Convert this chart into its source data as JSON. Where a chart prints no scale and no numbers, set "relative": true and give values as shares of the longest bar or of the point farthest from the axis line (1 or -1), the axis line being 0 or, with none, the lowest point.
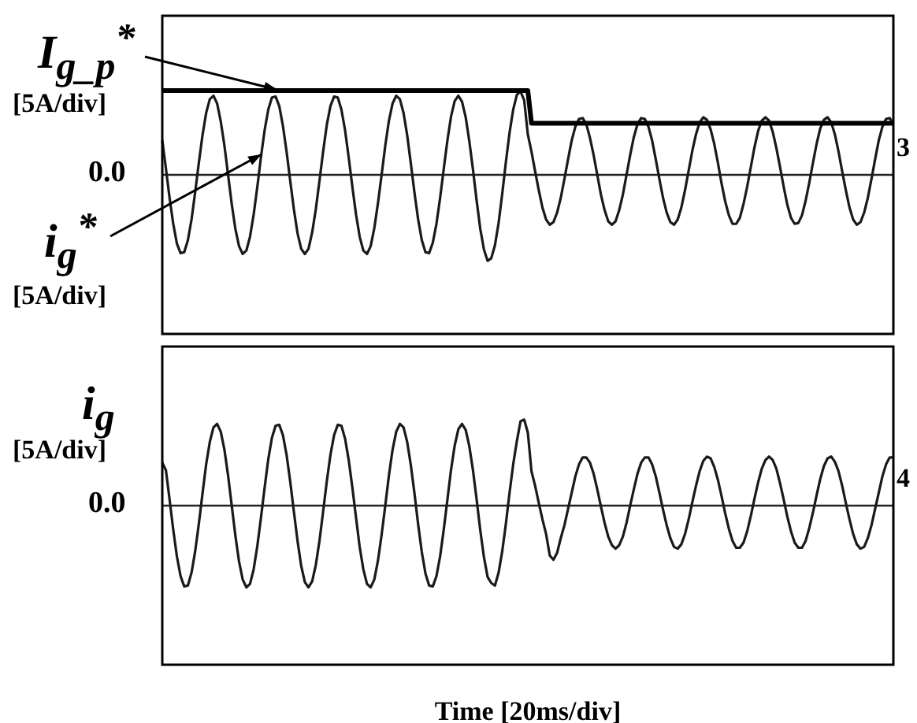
{
  "chart_data": [
    {
      "type": "line",
      "relative": true,
      "annotations": [
        "[5A/div]",
        "[5A/div]",
        "0.0",
        "3"
      ],
      "categories": [
        null,
        null,
        null,
        null,
        null,
        null,
        null,
        null,
        null,
        null,
        null,
        null,
        null,
        null,
        null,
        null,
        null,
        null,
        null,
        null,
        null,
        null,
        null,
        null,
        null,
        null,
        null,
        null,
        null,
        null,
        null,
        null,
        null,
        null,
        null,
        null,
        null,
        null,
        null,
        null,
        null,
        null,
        null,
        null,
        null,
        null,
        null,
        null,
        null,
        null,
        null,
        null,
        null,
        null,
        null,
        null,
        null,
        null,
        null,
        null,
        null,
        null,
        null,
        null,
        null,
        null,
        null,
        null,
        null,
        null,
        null,
        null,
        null,
        null,
        null,
        null,
        null,
        null,
        null,
        null,
        null,
        null,
        null,
        null,
        null,
        null,
        null,
        null,
        null,
        null,
        null,
        null,
        null,
        null,
        null,
        null,
        null,
        null,
        null,
        null,
        null,
        null,
        null,
        null,
        null,
        null,
        null,
        null,
        null,
        null,
        null,
        null,
        null,
        null,
        null,
        null,
        null,
        null,
        null,
        null,
        null,
        null,
        null,
        null,
        null,
        null,
        null,
        null,
        null,
        null,
        null,
        null,
        null,
        null,
        null,
        null,
        null,
        null,
        null,
        null,
        null,
        null,
        null,
        null,
        null,
        null,
        null,
        null,
        null,
        null,
        null,
        null,
        null,
        null,
        null,
        null,
        null,
        null,
        null,
        null,
        null,
        null,
        null,
        null,
        null,
        null,
        null,
        null,
        null,
        null,
        null,
        null,
        null,
        null,
        null,
        null,
        null,
        null,
        null,
        null,
        null,
        null,
        null,
        null,
        null,
        null,
        null,
        null,
        null,
        null,
        null,
        null,
        null,
        null,
        null,
        null,
        null,
        null,
        null,
        null,
        null
      ],
      "series": [
        {
          "name": "i$_{g}$$^{*}$",
          "color": "#1a1a1a",
          "values": [
            0.4,
            0.07,
            -0.27,
            -0.57,
            -0.8,
            -0.91,
            -0.9,
            -0.76,
            -0.52,
            -0.2,
            0.14,
            0.46,
            0.72,
            0.88,
            0.92,
            0.83,
            0.62,
            0.34,
            0,
            -0.34,
            -0.63,
            -0.83,
            -0.92,
            -0.88,
            -0.72,
            -0.46,
            -0.14,
            0.21,
            0.52,
            0.76,
            0.9,
            0.91,
            0.8,
            0.57,
            0.27,
            -0.07,
            -0.4,
            -0.68,
            -0.86,
            -0.92,
            -0.86,
            -0.67,
            -0.4,
            -0.07,
            0.27,
            0.58,
            0.8,
            0.91,
            0.9,
            0.76,
            0.52,
            0.2,
            -0.14,
            -0.46,
            -0.72,
            -0.88,
            -0.92,
            -0.83,
            -0.62,
            -0.33,
            0,
            0.34,
            0.63,
            0.83,
            0.92,
            0.88,
            0.72,
            0.46,
            0.13,
            -0.21,
            -0.52,
            -0.76,
            -0.9,
            -0.91,
            -0.79,
            -0.57,
            -0.27,
            0.07,
            0.4,
            0.68,
            0.86,
            0.92,
            0.85,
            0.67,
            0.39,
            0.06,
            -0.3,
            -0.63,
            -0.87,
            -1,
            -0.97,
            -0.82,
            -0.56,
            -0.22,
            0.15,
            0.49,
            0.76,
            0.93,
            0.97,
            0.87,
            0.47,
            0.27,
            0.04,
            -0.18,
            -0.38,
            -0.52,
            -0.58,
            -0.55,
            -0.44,
            -0.27,
            -0.05,
            0.18,
            0.4,
            0.56,
            0.65,
            0.66,
            0.59,
            0.43,
            0.23,
            0,
            -0.23,
            -0.41,
            -0.54,
            -0.58,
            -0.54,
            -0.41,
            -0.23,
            0,
            0.23,
            0.44,
            0.59,
            0.66,
            0.65,
            0.56,
            0.4,
            0.18,
            -0.05,
            -0.27,
            -0.44,
            -0.55,
            -0.58,
            -0.52,
            -0.38,
            -0.18,
            0.05,
            0.28,
            0.47,
            0.61,
            0.67,
            0.64,
            0.53,
            0.36,
            0.14,
            -0.1,
            -0.31,
            -0.47,
            -0.57,
            -0.57,
            -0.5,
            -0.34,
            -0.14,
            0.09,
            0.32,
            0.51,
            0.63,
            0.67,
            0.63,
            0.5,
            0.31,
            0.09,
            -0.14,
            -0.35,
            -0.5,
            -0.57,
            -0.56,
            -0.47,
            -0.3,
            -0.09,
            0.14,
            0.36,
            0.54,
            0.64,
            0.67,
            0.61,
            0.47,
            0.27,
            0.04,
            -0.18,
            -0.38,
            -0.52,
            -0.58,
            -0.55,
            -0.44,
            -0.27,
            -0.05,
            0.18,
            0.4,
            0.56,
            0.65,
            0.66,
            0.59
          ]
        },
        {
          "name": "I$_{g_p}$$^{*}$",
          "color": "#000000",
          "values": [
            0.98,
            0.98,
            0.98,
            0.98,
            0.98,
            0.98,
            0.98,
            0.98,
            0.98,
            0.98,
            0.98,
            0.98,
            0.98,
            0.98,
            0.98,
            0.98,
            0.98,
            0.98,
            0.98,
            0.98,
            0.98,
            0.98,
            0.98,
            0.98,
            0.98,
            0.98,
            0.98,
            0.98,
            0.98,
            0.98,
            0.98,
            0.98,
            0.98,
            0.98,
            0.98,
            0.98,
            0.98,
            0.98,
            0.98,
            0.98,
            0.98,
            0.98,
            0.98,
            0.98,
            0.98,
            0.98,
            0.98,
            0.98,
            0.98,
            0.98,
            0.98,
            0.98,
            0.98,
            0.98,
            0.98,
            0.98,
            0.98,
            0.98,
            0.98,
            0.98,
            0.98,
            0.98,
            0.98,
            0.98,
            0.98,
            0.98,
            0.98,
            0.98,
            0.98,
            0.98,
            0.98,
            0.98,
            0.98,
            0.98,
            0.98,
            0.98,
            0.98,
            0.98,
            0.98,
            0.98,
            0.98,
            0.98,
            0.98,
            0.98,
            0.98,
            0.98,
            0.98,
            0.98,
            0.98,
            0.98,
            0.98,
            0.98,
            0.98,
            0.98,
            0.98,
            0.98,
            0.98,
            0.98,
            0.98,
            0.98,
            0.98,
            0.6,
            0.6,
            0.6,
            0.6,
            0.6,
            0.6,
            0.6,
            0.6,
            0.6,
            0.6,
            0.6,
            0.6,
            0.6,
            0.6,
            0.6,
            0.6,
            0.6,
            0.6,
            0.6,
            0.6,
            0.6,
            0.6,
            0.6,
            0.6,
            0.6,
            0.6,
            0.6,
            0.6,
            0.6,
            0.6,
            0.6,
            0.6,
            0.6,
            0.6,
            0.6,
            0.6,
            0.6,
            0.6,
            0.6,
            0.6,
            0.6,
            0.6,
            0.6,
            0.6,
            0.6,
            0.6,
            0.6,
            0.6,
            0.6,
            0.6,
            0.6,
            0.6,
            0.6,
            0.6,
            0.6,
            0.6,
            0.6,
            0.6,
            0.6,
            0.6,
            0.6,
            0.6,
            0.6,
            0.6,
            0.6,
            0.6,
            0.6,
            0.6,
            0.6,
            0.6,
            0.6,
            0.6,
            0.6,
            0.6,
            0.6,
            0.6,
            0.6,
            0.6,
            0.6,
            0.6,
            0.6,
            0.6,
            0.6,
            0.6,
            0.6,
            0.6,
            0.6,
            0.6,
            0.6,
            0.6,
            0.6,
            0.6,
            0.6,
            0.6,
            0.6,
            0.6,
            0.6,
            0.6,
            0.6,
            0.6
          ]
        }
      ]
    },
    {
      "type": "line",
      "relative": true,
      "xlabel": "Time [20ms/div]",
      "annotations": [
        "[5A/div]",
        "0.0",
        "4"
      ],
      "categories": [
        null,
        null,
        null,
        null,
        null,
        null,
        null,
        null,
        null,
        null,
        null,
        null,
        null,
        null,
        null,
        null,
        null,
        null,
        null,
        null,
        null,
        null,
        null,
        null,
        null,
        null,
        null,
        null,
        null,
        null,
        null,
        null,
        null,
        null,
        null,
        null,
        null,
        null,
        null,
        null,
        null,
        null,
        null,
        null,
        null,
        null,
        null,
        null,
        null,
        null,
        null,
        null,
        null,
        null,
        null,
        null,
        null,
        null,
        null,
        null,
        null,
        null,
        null,
        null,
        null,
        null,
        null,
        null,
        null,
        null,
        null,
        null,
        null,
        null,
        null,
        null,
        null,
        null,
        null,
        null,
        null,
        null,
        null,
        null,
        null,
        null,
        null,
        null,
        null,
        null,
        null,
        null,
        null,
        null,
        null,
        null,
        null,
        null,
        null,
        null,
        null,
        null,
        null,
        null,
        null,
        null,
        null,
        null,
        null,
        null,
        null,
        null,
        null,
        null,
        null,
        null,
        null,
        null,
        null,
        null,
        null,
        null,
        null,
        null,
        null,
        null,
        null,
        null,
        null,
        null,
        null,
        null,
        null,
        null,
        null,
        null,
        null,
        null,
        null,
        null,
        null,
        null,
        null,
        null,
        null,
        null,
        null,
        null,
        null,
        null,
        null,
        null,
        null,
        null,
        null,
        null,
        null,
        null,
        null,
        null,
        null,
        null,
        null,
        null,
        null,
        null,
        null,
        null,
        null,
        null,
        null,
        null,
        null,
        null,
        null,
        null,
        null,
        null,
        null,
        null,
        null,
        null,
        null,
        null,
        null,
        null,
        null,
        null,
        null,
        null,
        null,
        null,
        null,
        null,
        null,
        null,
        null,
        null,
        null,
        null,
        null
      ],
      "series": [
        {
          "name": "i$_{g}$",
          "color": "#1a1a1a",
          "values": [
            0.5,
            0.41,
            0.07,
            -0.28,
            -0.59,
            -0.82,
            -0.94,
            -0.93,
            -0.78,
            -0.53,
            -0.21,
            0.14,
            0.48,
            0.74,
            0.91,
            0.95,
            0.86,
            0.65,
            0.35,
            0,
            -0.35,
            -0.65,
            -0.86,
            -0.95,
            -0.91,
            -0.74,
            -0.47,
            -0.14,
            0.21,
            0.54,
            0.79,
            0.93,
            0.94,
            0.82,
            0.59,
            0.28,
            -0.07,
            -0.41,
            -0.7,
            -0.89,
            -0.95,
            -0.88,
            -0.69,
            -0.41,
            -0.07,
            0.28,
            0.59,
            0.82,
            0.94,
            0.93,
            0.78,
            0.53,
            0.21,
            -0.14,
            -0.48,
            -0.74,
            -0.91,
            -0.95,
            -0.86,
            -0.64,
            -0.34,
            0,
            0.35,
            0.65,
            0.86,
            0.95,
            0.91,
            0.74,
            0.47,
            0.14,
            -0.22,
            -0.54,
            -0.79,
            -0.93,
            -0.94,
            -0.82,
            -0.59,
            -0.28,
            0.07,
            0.42,
            0.7,
            0.89,
            0.95,
            0.88,
            0.69,
            0.41,
            0.07,
            -0.29,
            -0.6,
            -0.83,
            -0.9,
            -0.93,
            -0.78,
            -0.53,
            -0.21,
            0.15,
            0.48,
            0.75,
            0.98,
            1,
            0.85,
            0.4,
            0.23,
            0.03,
            -0.16,
            -0.33,
            -0.58,
            -0.63,
            -0.55,
            -0.38,
            -0.23,
            -0.04,
            0.15,
            0.34,
            0.48,
            0.56,
            0.56,
            0.5,
            0.37,
            0.19,
            -0.01,
            -0.2,
            -0.36,
            -0.46,
            -0.5,
            -0.46,
            -0.36,
            -0.2,
            0,
            0.19,
            0.37,
            0.5,
            0.56,
            0.56,
            0.48,
            0.34,
            0.15,
            -0.05,
            -0.23,
            -0.38,
            -0.48,
            -0.5,
            -0.45,
            -0.33,
            -0.16,
            0.04,
            0.23,
            0.4,
            0.52,
            0.57,
            0.55,
            0.45,
            0.3,
            0.11,
            -0.09,
            -0.27,
            -0.41,
            -0.49,
            -0.49,
            -0.43,
            -0.3,
            -0.12,
            0.08,
            0.27,
            0.43,
            0.53,
            0.57,
            0.53,
            0.43,
            0.26,
            0.07,
            -0.13,
            -0.3,
            -0.43,
            -0.49,
            -0.49,
            -0.41,
            -0.26,
            -0.08,
            0.12,
            0.31,
            0.46,
            0.55,
            0.57,
            0.51,
            0.4,
            0.23,
            0.03,
            -0.16,
            -0.33,
            -0.45,
            -0.5,
            -0.48,
            -0.38,
            -0.23,
            -0.04,
            0.15,
            0.34,
            0.48,
            0.56,
            0.56
          ]
        }
      ]
    }
  ]
}
